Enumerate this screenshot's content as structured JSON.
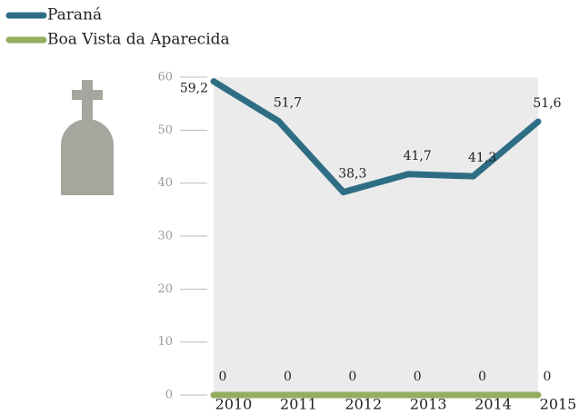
{
  "chart_data": {
    "type": "line",
    "categories": [
      "2010",
      "2011",
      "2012",
      "2013",
      "2014",
      "2015"
    ],
    "series": [
      {
        "name": "Paraná",
        "color": "#2e6e85",
        "values": [
          59.2,
          51.7,
          38.3,
          41.7,
          41.3,
          51.6
        ],
        "value_labels": [
          "59,2",
          "51,7",
          "38,3",
          "41,7",
          "41,3",
          "51,6"
        ]
      },
      {
        "name": "Boa Vista da Aparecida",
        "color": "#95ae5e",
        "values": [
          0,
          0,
          0,
          0,
          0,
          0
        ]
      }
    ],
    "ylim": [
      0,
      60
    ],
    "yticks": [
      0,
      10,
      20,
      30,
      40,
      50,
      60
    ],
    "grid": true,
    "legend": "top-left"
  }
}
